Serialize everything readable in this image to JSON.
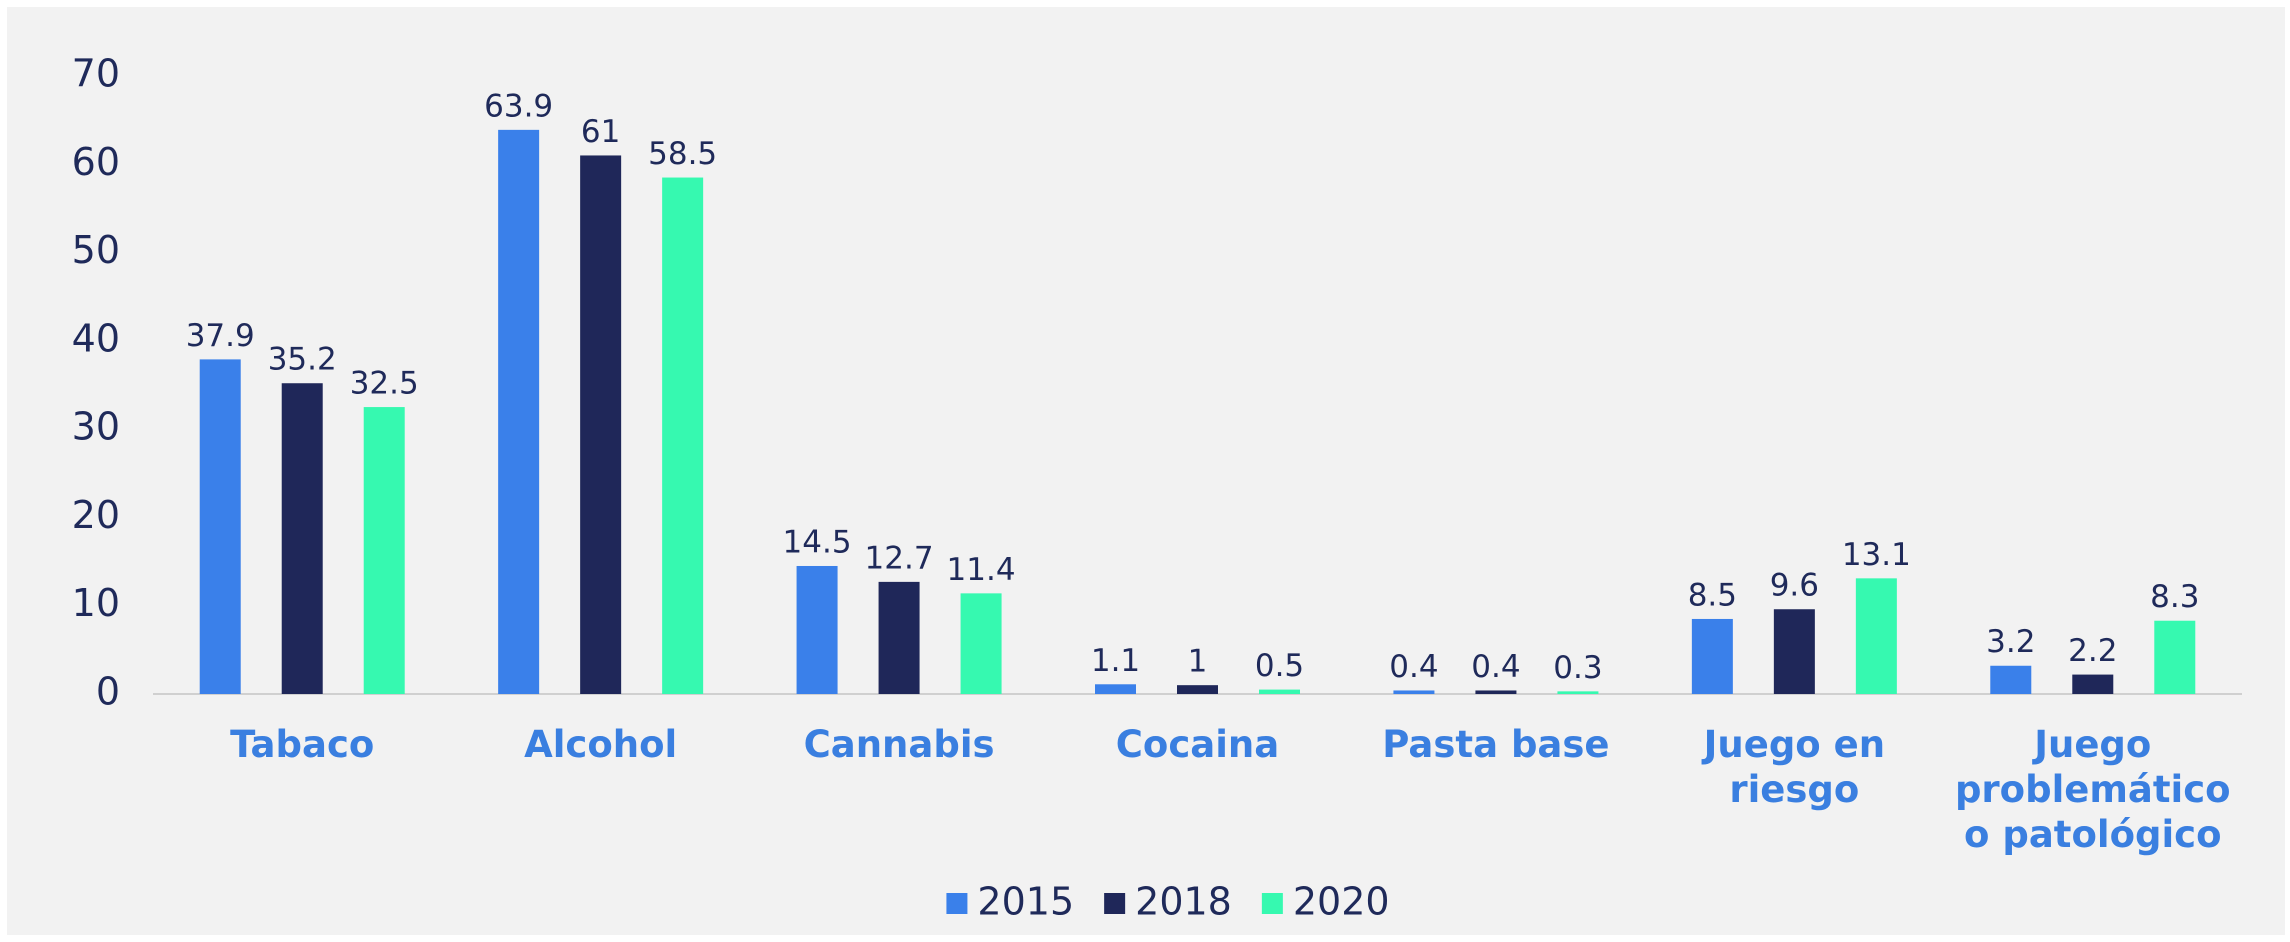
{
  "chart_data": {
    "type": "bar",
    "categories": [
      "Tabaco",
      "Alcohol",
      "Cannabis",
      "Cocaina",
      "Pasta base",
      "Juego en riesgo",
      "Juego problemático o patológico"
    ],
    "series": [
      {
        "name": "2015",
        "color": "#3a80ea",
        "values": [
          37.9,
          63.9,
          14.5,
          1.1,
          0.4,
          8.5,
          3.2
        ]
      },
      {
        "name": "2018",
        "color": "#1f2759",
        "values": [
          35.2,
          61,
          12.7,
          1,
          0.4,
          9.6,
          2.2
        ]
      },
      {
        "name": "2020",
        "color": "#36f9b0",
        "values": [
          32.5,
          58.5,
          11.4,
          0.5,
          0.3,
          13.1,
          8.3
        ]
      }
    ],
    "ylim": [
      0,
      70
    ],
    "yticks": [
      0,
      10,
      20,
      30,
      40,
      50,
      60,
      70
    ],
    "grid": false,
    "legend": "bottom"
  }
}
